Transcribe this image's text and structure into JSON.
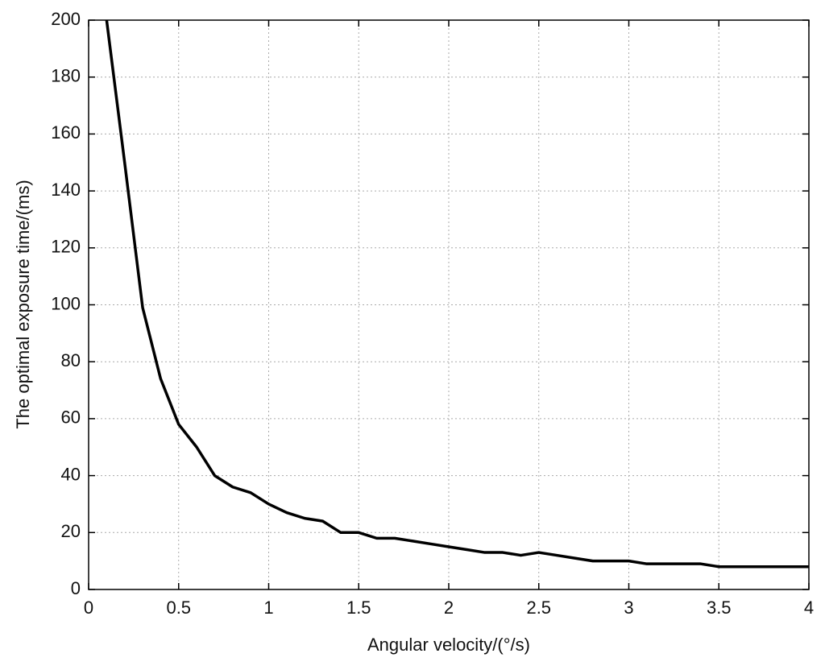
{
  "chart_data": {
    "type": "line",
    "x_label": "Angular velocity/(°/s)",
    "y_label": "The optimal exposure time/(ms)",
    "x": [
      0.1,
      0.2,
      0.3,
      0.4,
      0.5,
      0.6,
      0.7,
      0.8,
      0.9,
      1.0,
      1.1,
      1.2,
      1.3,
      1.4,
      1.5,
      1.6,
      1.7,
      1.8,
      1.9,
      2.0,
      2.1,
      2.2,
      2.3,
      2.4,
      2.5,
      2.6,
      2.7,
      2.8,
      2.9,
      3.0,
      3.1,
      3.2,
      3.3,
      3.4,
      3.5,
      3.6,
      3.7,
      3.8,
      3.9,
      4.0
    ],
    "series": [
      {
        "color": "#000000",
        "values": [
          200,
          150,
          99,
          74,
          58,
          50,
          40,
          36,
          34,
          30,
          27,
          25,
          24,
          20,
          20,
          18,
          18,
          17,
          16,
          15,
          14,
          13,
          13,
          12,
          13,
          12,
          11,
          10,
          10,
          10,
          9,
          9,
          9,
          9,
          8,
          8,
          8,
          8,
          8,
          8
        ]
      }
    ],
    "xlim": [
      0,
      4
    ],
    "xticks": [
      0,
      0.5,
      1,
      1.5,
      2,
      2.5,
      3,
      3.5,
      4
    ],
    "ylim": [
      0,
      200
    ],
    "yticks": [
      0,
      20,
      40,
      60,
      80,
      100,
      120,
      140,
      160,
      180,
      200
    ],
    "grid": true
  }
}
